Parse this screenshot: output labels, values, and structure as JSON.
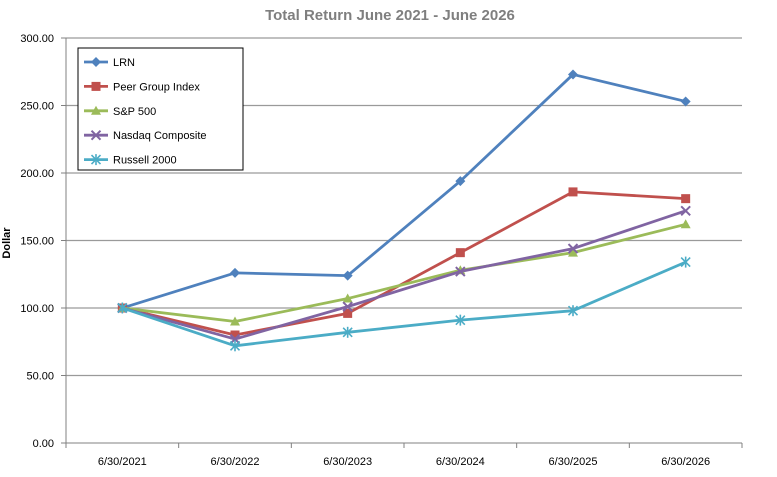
{
  "chart_data": {
    "type": "line",
    "title": "Total Return June 2021 - June 2026",
    "xlabel": "",
    "ylabel": "Dollar",
    "categories": [
      "6/30/2021",
      "6/30/2022",
      "6/30/2023",
      "6/30/2024",
      "6/30/2025",
      "6/30/2026"
    ],
    "ylim": [
      0,
      300
    ],
    "yticks": [
      "0.00",
      "50.00",
      "100.00",
      "150.00",
      "200.00",
      "250.00",
      "300.00"
    ],
    "grid": true,
    "legend_position": "top-left",
    "series": [
      {
        "name": "LRN",
        "color": "#4f81bd",
        "marker": "diamond",
        "values": [
          100,
          126,
          124,
          194,
          273,
          253
        ]
      },
      {
        "name": "Peer Group Index",
        "color": "#c0504d",
        "marker": "square",
        "values": [
          100,
          80,
          96,
          141,
          186,
          181
        ]
      },
      {
        "name": "S&P 500",
        "color": "#9bbb59",
        "marker": "triangle",
        "values": [
          100,
          90,
          107,
          128,
          141,
          162
        ]
      },
      {
        "name": "Nasdaq Composite",
        "color": "#8064a2",
        "marker": "x",
        "values": [
          100,
          77,
          101,
          127,
          144,
          172
        ]
      },
      {
        "name": "Russell 2000",
        "color": "#4bacc6",
        "marker": "star",
        "values": [
          100,
          72,
          82,
          91,
          98,
          134
        ]
      }
    ]
  }
}
